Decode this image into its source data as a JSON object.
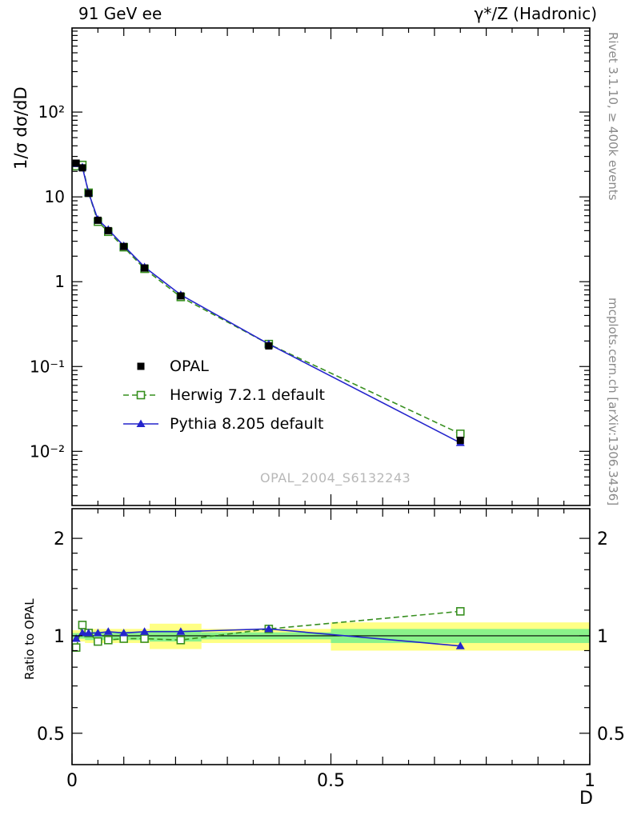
{
  "header": {
    "left_title": "91 GeV ee",
    "right_title": "γ*/Z (Hadronic)"
  },
  "side_texts": {
    "rivet": "Rivet 3.1.10, ≥ 400k events",
    "mcplots": "mcplots.cern.ch [arXiv:1306.3436]"
  },
  "watermark": "OPAL_2004_S6132243",
  "chart_data": {
    "type": "line",
    "title": "",
    "x_label": "D",
    "y_label": "1/σ dσ/dD",
    "ratio_label": "Ratio to OPAL",
    "x_axis": {
      "scale": "linear",
      "min": 0,
      "max": 1,
      "major_ticks": [
        {
          "v": 0,
          "label": "0"
        },
        {
          "v": 0.5,
          "label": "0.5"
        },
        {
          "v": 1,
          "label": "1"
        }
      ]
    },
    "y_main_axis": {
      "scale": "log",
      "min": 0.0023,
      "max": 980,
      "major_ticks": [
        {
          "v": 100,
          "label": "10²"
        },
        {
          "v": 10,
          "label": "10"
        },
        {
          "v": 1,
          "label": "1"
        },
        {
          "v": 0.1,
          "label": "10⁻¹"
        },
        {
          "v": 0.01,
          "label": "10⁻²"
        }
      ]
    },
    "y_ratio_axis": {
      "scale": "log",
      "min": 0.4,
      "max": 2.47,
      "major_ticks": [
        {
          "v": 0.5,
          "label": "0.5"
        },
        {
          "v": 1,
          "label": "1"
        },
        {
          "v": 2,
          "label": "2"
        }
      ],
      "minor_ticks": [
        0.6,
        0.7,
        0.8,
        0.9,
        1.2,
        1.4,
        1.6,
        1.8
      ]
    },
    "x": [
      0.008,
      0.02,
      0.032,
      0.05,
      0.07,
      0.1,
      0.14,
      0.21,
      0.38,
      0.75
    ],
    "series": [
      {
        "label": "OPAL",
        "marker": "filled-square",
        "color": "#000000",
        "line": "none",
        "values": [
          25,
          22,
          11,
          5.3,
          4.0,
          2.6,
          1.45,
          0.68,
          0.175,
          0.0135
        ]
      },
      {
        "label": "Herwig 7.2.1 default",
        "marker": "open-square",
        "color": "#378f1f",
        "line": "dashed",
        "values": [
          23,
          23.8,
          11.2,
          5.1,
          3.88,
          2.55,
          1.42,
          0.66,
          0.184,
          0.0161
        ]
      },
      {
        "label": "Pythia 8.205 default",
        "marker": "filled-triangle",
        "color": "#2424cc",
        "line": "solid",
        "values": [
          24.5,
          22.4,
          11.2,
          5.4,
          4.12,
          2.65,
          1.49,
          0.7,
          0.184,
          0.0126
        ]
      }
    ],
    "ratio": {
      "reference": "OPAL",
      "series": [
        {
          "label": "Herwig 7.2.1 default",
          "marker": "open-square",
          "color": "#378f1f",
          "line": "dashed",
          "values": [
            0.92,
            1.08,
            1.02,
            0.96,
            0.97,
            0.98,
            0.98,
            0.97,
            1.05,
            1.19
          ]
        },
        {
          "label": "Pythia 8.205 default",
          "marker": "filled-triangle",
          "color": "#2424cc",
          "line": "solid",
          "values": [
            0.98,
            1.02,
            1.02,
            1.02,
            1.03,
            1.02,
            1.03,
            1.03,
            1.05,
            0.93
          ]
        }
      ],
      "bands": [
        {
          "x0": 0,
          "x1": 0.025,
          "yellow": [
            0.96,
            1.04
          ],
          "green": [
            0.98,
            1.02
          ]
        },
        {
          "x0": 0.025,
          "x1": 0.15,
          "yellow": [
            0.95,
            1.05
          ],
          "green": [
            0.97,
            1.03
          ]
        },
        {
          "x0": 0.15,
          "x1": 0.25,
          "yellow": [
            0.91,
            1.09
          ],
          "green": [
            0.96,
            1.04
          ]
        },
        {
          "x0": 0.25,
          "x1": 0.5,
          "yellow": [
            0.95,
            1.05
          ],
          "green": [
            0.975,
            1.025
          ]
        },
        {
          "x0": 0.5,
          "x1": 1.0,
          "yellow": [
            0.9,
            1.1
          ],
          "green": [
            0.95,
            1.05
          ]
        }
      ],
      "band_colors": {
        "yellow": "#ffff84",
        "green": "#8af28a"
      }
    }
  }
}
